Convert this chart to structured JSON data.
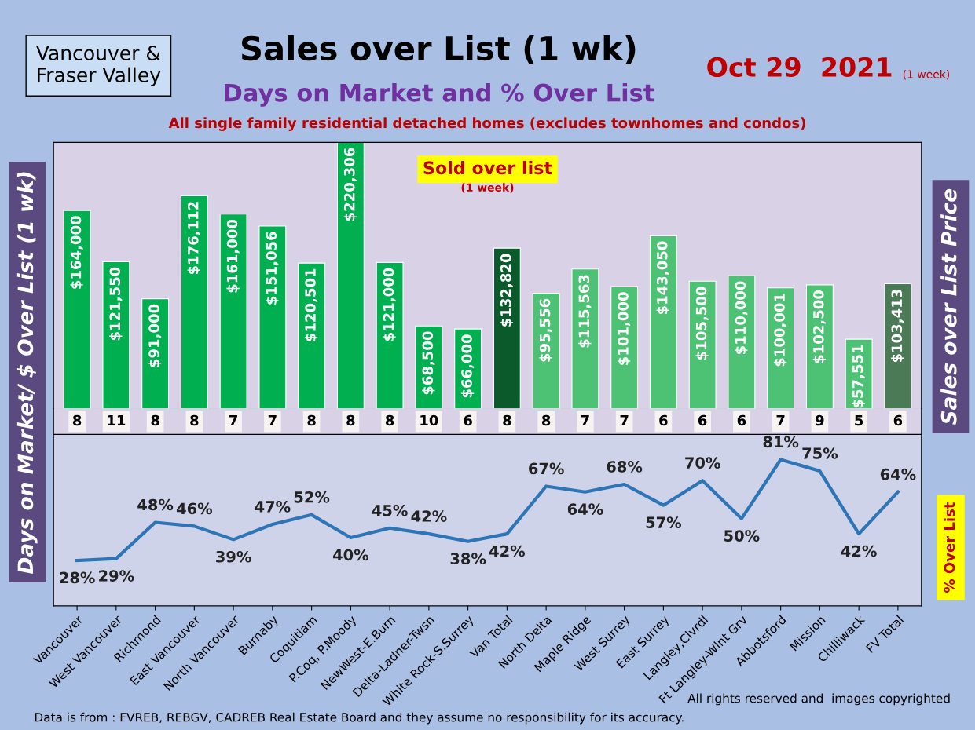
{
  "chart_data": [
    {
      "type": "bar",
      "title": "Sales over List (1 wk)",
      "subtitle": "Days on Market and % Over List",
      "ylabel": "Days on Market/ $ Over List (1 wk)",
      "y2label": "Sales over List Price",
      "categories": [
        null,
        null,
        null,
        null,
        null,
        null,
        null,
        null,
        null,
        null,
        null,
        null,
        null,
        null,
        null,
        null,
        null,
        null,
        null,
        null,
        null,
        null
      ],
      "colors": [
        "#00b050",
        "#00b050",
        "#00b050",
        "#00b050",
        "#00b050",
        "#00b050",
        "#00b050",
        "#00b050",
        "#00b050",
        "#00b050",
        "#00b050",
        "#0b5a2c",
        "#4dc274",
        "#4dc274",
        "#4dc274",
        "#4dc274",
        "#4dc274",
        "#4dc274",
        "#4dc274",
        "#4dc274",
        "#4dc274",
        "#4a7a56"
      ],
      "values": [
        164000,
        121550,
        91000,
        176112,
        161000,
        151056,
        120501,
        220306,
        121000,
        68500,
        66000,
        132820,
        95556,
        115563,
        101000,
        143050,
        105500,
        110000,
        100001,
        102500,
        57551,
        103413
      ],
      "value_labels": [
        "$164,000",
        "$121,550",
        "$91,000",
        "$176,112",
        "$161,000",
        "$151,056",
        "$120,501",
        "$220,306",
        "$121,000",
        "$68,500",
        "$66,000",
        "$132,820",
        "$95,556",
        "$115,563",
        "$101,000",
        "$143,050",
        "$105,500",
        "$110,000",
        "$100,001",
        "$102,500",
        "$57,551",
        "$103,413"
      ],
      "tick_labels": false,
      "annotations": [
        "Vancouver & Fraser Valley",
        "Oct 29  2021",
        "(1 week)",
        "All single family residential detached homes (excludes townhomes and condos)",
        "Sold over list",
        "(1 week)"
      ]
    },
    {
      "type": "other",
      "categories": [
        null,
        null,
        null,
        null,
        null,
        null,
        null,
        null,
        null,
        null,
        null,
        null,
        null,
        null,
        null,
        null,
        null,
        null,
        null,
        null,
        null,
        null
      ],
      "values": [
        8,
        11,
        8,
        8,
        7,
        7,
        8,
        8,
        8,
        10,
        6,
        8,
        8,
        7,
        7,
        6,
        6,
        6,
        7,
        9,
        5,
        6
      ],
      "data_labels": true
    },
    {
      "type": "line",
      "marker": "none",
      "categories": [
        "Vancouver",
        "West Vancouver",
        "Richmond",
        "East Vancouver",
        "North Vancouver",
        "Burnaby",
        "Coquitlam",
        "P.Coq, P.Moody",
        "NewWest-E.Burn",
        "Delta-Ladner-Twsn",
        "White Rock-S.Surrey",
        "Van Total",
        "North Delta",
        "Maple Ridge",
        "West Surrey",
        "East Surrey",
        "Langley,Clvrdl",
        "Ft Langley-Wlnt Grv",
        "Abbotsford",
        "Mission",
        "Chilliwack",
        "FV Total"
      ],
      "series": [
        {
          "color": "#2e75b6",
          "values": [
            28,
            29,
            48,
            46,
            39,
            47,
            52,
            40,
            45,
            42,
            38,
            42,
            67,
            64,
            68,
            57,
            70,
            50,
            81,
            75,
            42,
            64
          ],
          "value_labels": [
            "28%",
            "29%",
            "48%",
            "46%",
            "39%",
            "47%",
            "52%",
            "40%",
            "45%",
            "42%",
            "38%",
            "42%",
            "67%",
            "64%",
            "68%",
            "57%",
            "70%",
            "50%",
            "81%",
            "75%",
            "42%",
            "64%"
          ]
        }
      ],
      "tick_labels": "x",
      "line_style": "solid",
      "annotations": [
        "% Over List",
        "All rights reserved and  images copyrighted",
        "Data is from : FVREB, REBGV, CADREB Real Estate Board and they assume no responsibility for its accuracy."
      ]
    }
  ]
}
